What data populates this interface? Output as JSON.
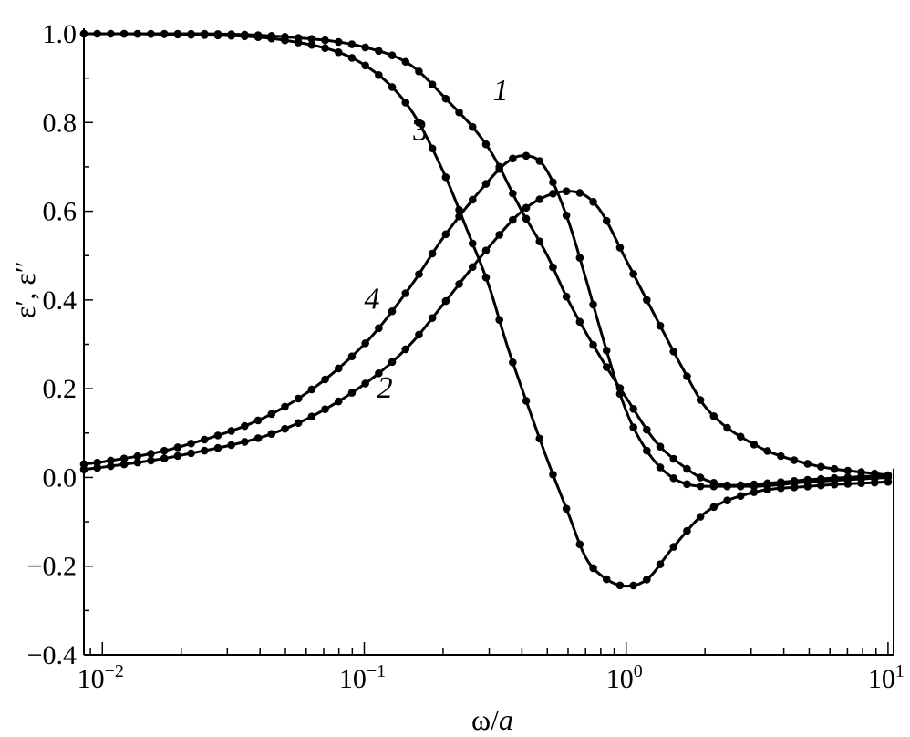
{
  "chart_data": {
    "type": "line",
    "xlabel": "ω/a",
    "ylabel": "ε′, ε″",
    "xscale": "log",
    "xlim": [
      0.0085,
      10.5
    ],
    "ylim": [
      -0.4,
      1.0
    ],
    "grid": false,
    "legend": "none",
    "y_ticks": [
      {
        "value": 1.0,
        "label": "1.0"
      },
      {
        "value": 0.8,
        "label": "0.8"
      },
      {
        "value": 0.6,
        "label": "0.6"
      },
      {
        "value": 0.4,
        "label": "0.4"
      },
      {
        "value": 0.2,
        "label": "0.2"
      },
      {
        "value": 0.0,
        "label": "0.0"
      },
      {
        "value": -0.2,
        "label": "−0.2"
      },
      {
        "value": -0.4,
        "label": "−0.4"
      }
    ],
    "x_ticks": [
      {
        "value": 0.01,
        "base": "10",
        "exp": "−2"
      },
      {
        "value": 0.1,
        "base": "10",
        "exp": "−1"
      },
      {
        "value": 1,
        "base": "10",
        "exp": "0"
      },
      {
        "value": 10,
        "base": "10",
        "exp": "1"
      }
    ],
    "curve_labels": [
      {
        "text": "1",
        "x": 0.31,
        "y": 0.85,
        "italic": true
      },
      {
        "text": "3",
        "x": 0.152,
        "y": 0.76,
        "italic": false
      },
      {
        "text": "4",
        "x": 0.1,
        "y": 0.38,
        "italic": true
      },
      {
        "text": "2",
        "x": 0.112,
        "y": 0.18,
        "italic": true
      }
    ],
    "series": [
      {
        "label": "1",
        "x": [
          0.0085,
          0.01,
          0.02,
          0.05,
          0.1,
          0.15,
          0.2,
          0.3,
          0.4,
          0.5,
          0.6,
          0.8,
          1.0,
          1.3,
          1.7,
          2.0,
          2.5,
          3.0,
          4.0,
          5.0,
          7.0,
          10.0
        ],
        "y": [
          1.0,
          1.0,
          1.0,
          0.993,
          0.97,
          0.93,
          0.86,
          0.74,
          0.6,
          0.5,
          0.4,
          0.27,
          0.18,
          0.08,
          0.02,
          -0.005,
          -0.018,
          -0.016,
          -0.01,
          -0.005,
          0.0,
          0.005
        ]
      },
      {
        "label": "2",
        "x": [
          0.0085,
          0.01,
          0.02,
          0.05,
          0.1,
          0.15,
          0.2,
          0.3,
          0.4,
          0.5,
          0.6,
          0.7,
          0.8,
          1.0,
          1.3,
          1.7,
          2.0,
          3.0,
          5.0,
          10.0
        ],
        "y": [
          0.018,
          0.023,
          0.05,
          0.11,
          0.21,
          0.3,
          0.39,
          0.52,
          0.6,
          0.635,
          0.645,
          0.635,
          0.6,
          0.49,
          0.36,
          0.23,
          0.16,
          0.078,
          0.03,
          0.005
        ]
      },
      {
        "label": "3",
        "x": [
          0.0085,
          0.01,
          0.02,
          0.05,
          0.1,
          0.15,
          0.2,
          0.25,
          0.3,
          0.35,
          0.4,
          0.5,
          0.6,
          0.7,
          0.8,
          1.0,
          1.2,
          1.5,
          2.0,
          3.0,
          5.0,
          10.0
        ],
        "y": [
          1.0,
          1.0,
          0.998,
          0.985,
          0.93,
          0.83,
          0.69,
          0.55,
          0.43,
          0.3,
          0.2,
          0.04,
          -0.08,
          -0.18,
          -0.22,
          -0.245,
          -0.23,
          -0.16,
          -0.08,
          -0.035,
          -0.02,
          -0.01
        ]
      },
      {
        "label": "4",
        "x": [
          0.0085,
          0.01,
          0.02,
          0.05,
          0.1,
          0.15,
          0.2,
          0.3,
          0.35,
          0.4,
          0.45,
          0.5,
          0.6,
          0.7,
          0.8,
          1.0,
          1.2,
          1.5,
          2.0,
          3.0,
          5.0,
          10.0
        ],
        "y": [
          0.03,
          0.035,
          0.07,
          0.16,
          0.3,
          0.43,
          0.54,
          0.67,
          0.71,
          0.725,
          0.72,
          0.69,
          0.58,
          0.45,
          0.33,
          0.15,
          0.06,
          0.0,
          -0.02,
          -0.02,
          -0.01,
          0.0
        ]
      }
    ]
  }
}
